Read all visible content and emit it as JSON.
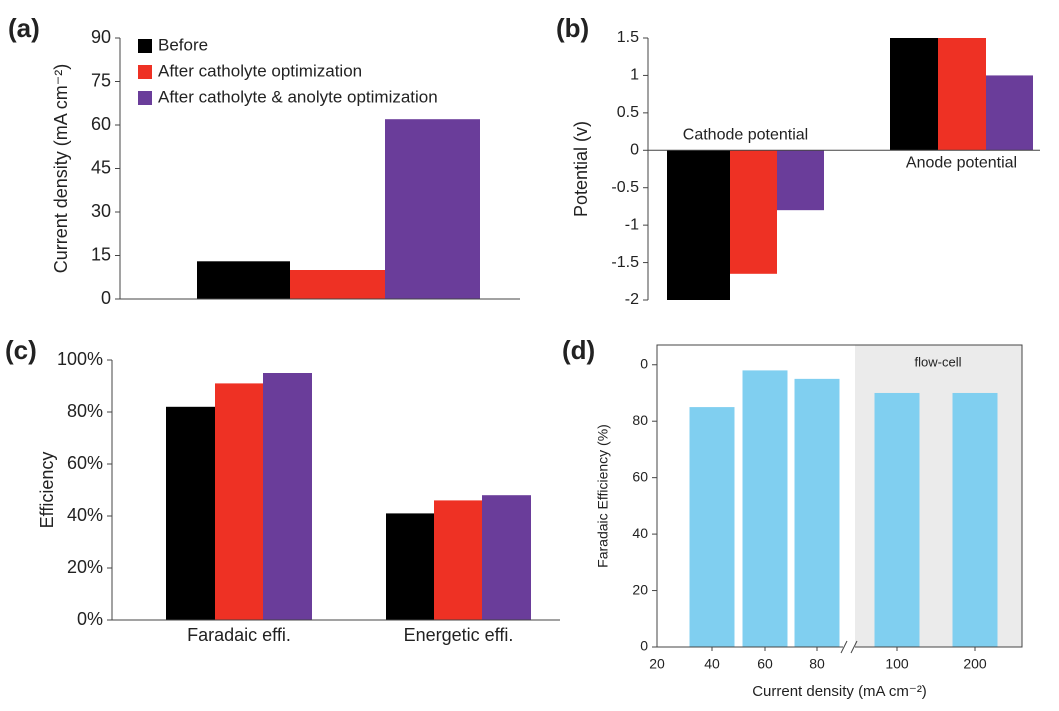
{
  "chart_data": [
    {
      "type": "bar",
      "panel_label": "(a)",
      "y_label": "Current density (mA cm⁻²)",
      "categories": [
        null
      ],
      "series": [
        {
          "name": "Before",
          "color": "#000000",
          "values": [
            13
          ]
        },
        {
          "name": "After catholyte optimization",
          "color": "#ee3124",
          "values": [
            10
          ]
        },
        {
          "name": "After catholyte & anolyte optimization",
          "color": "#6a3d9a",
          "values": [
            62
          ]
        }
      ],
      "ylim": [
        0,
        90
      ],
      "yticks": [
        0,
        15,
        30,
        45,
        60,
        75,
        90
      ],
      "legend": "top-left"
    },
    {
      "type": "bar",
      "panel_label": "(b)",
      "y_label": "Potential (v)",
      "categories": [
        "Cathode potential",
        "Anode potential"
      ],
      "series": [
        {
          "color": "#000000",
          "values": [
            -2,
            1.5
          ]
        },
        {
          "color": "#ee3124",
          "values": [
            -1.65,
            1.5
          ]
        },
        {
          "color": "#6a3d9a",
          "values": [
            -0.8,
            1
          ]
        }
      ],
      "ylim": [
        -2,
        1.5
      ],
      "yticks": [
        -2,
        -1.5,
        -1,
        -0.5,
        0,
        0.5,
        1,
        1.5
      ]
    },
    {
      "type": "bar",
      "panel_label": "(c)",
      "y_label": "Efficiency",
      "categories": [
        "Faradaic effi.",
        "Energetic effi."
      ],
      "series": [
        {
          "color": "#000000",
          "values": [
            82,
            41
          ]
        },
        {
          "color": "#ee3124",
          "values": [
            91,
            46
          ]
        },
        {
          "color": "#6a3d9a",
          "values": [
            95,
            48
          ]
        }
      ],
      "ylim": [
        0,
        100
      ],
      "yticks": [
        {
          "value": 0,
          "label": "0%"
        },
        {
          "value": 20,
          "label": "20%"
        },
        {
          "value": 40,
          "label": "40%"
        },
        {
          "value": 60,
          "label": "60%"
        },
        {
          "value": 80,
          "label": "80%"
        },
        {
          "value": 100,
          "label": "100%"
        }
      ]
    },
    {
      "type": "bar",
      "panel_label": "(d)",
      "y_label": "Faradaic Efficiency (%)",
      "x_label": "Current density (mA cm⁻²)",
      "axis_start_label": "20",
      "annotation": "flow-cell",
      "categories": [
        "40",
        "60",
        "80",
        "100",
        "200"
      ],
      "series": [
        {
          "color": "#80cff0",
          "values": [
            85,
            98,
            95,
            90,
            90
          ]
        }
      ],
      "ylim": [
        0,
        107
      ],
      "yticks": [
        0,
        20,
        40,
        60,
        80,
        {
          "value": 100,
          "label": "0"
        }
      ]
    }
  ]
}
